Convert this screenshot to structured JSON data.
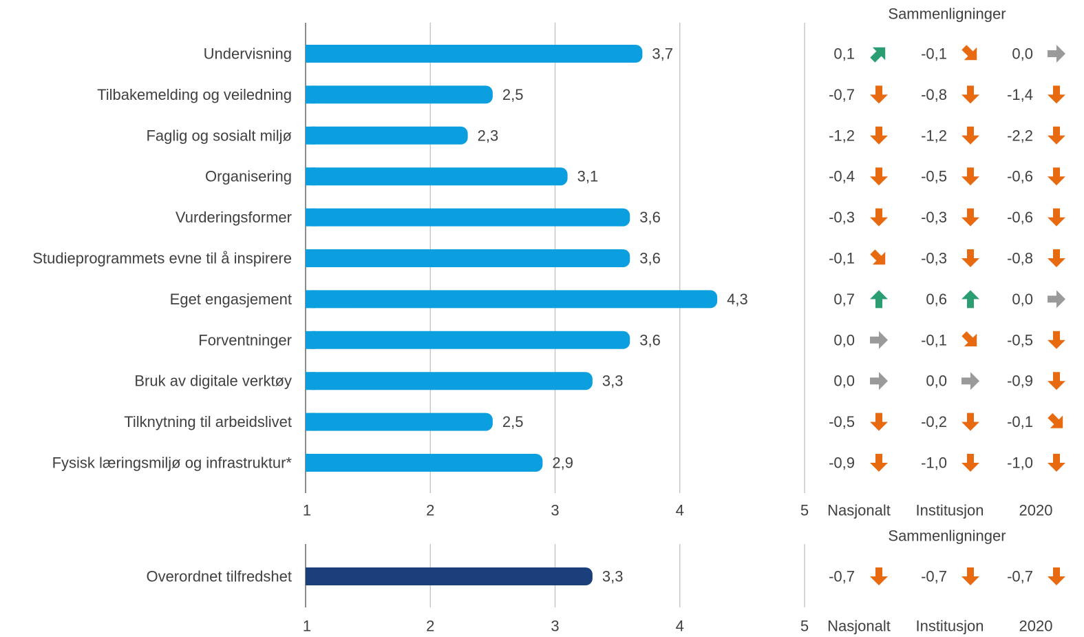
{
  "comparisons_title": "Sammenligninger",
  "comparison_headers": [
    "Nasjonalt",
    "Institusjon",
    "2020"
  ],
  "colors": {
    "bar_main": "#0b9fe0",
    "bar_overall": "#1b3f7a",
    "arrow_up": "#2a9d72",
    "arrow_down": "#e86a10",
    "arrow_neutral": "#9a9a9a",
    "grid": "#bfbfbf",
    "axis": "#8c8c8c",
    "text": "#404040"
  },
  "chart_data": [
    {
      "type": "bar",
      "orientation": "horizontal",
      "xlim": [
        1,
        5
      ],
      "ticks": [
        "1",
        "2",
        "3",
        "4",
        "5"
      ],
      "grid": true,
      "categories": [
        "Undervisning",
        "Tilbakemelding og veiledning",
        "Faglig og sosialt miljø",
        "Organisering",
        "Vurderingsformer",
        "Studieprogrammets evne til å inspirere",
        "Eget engasjement",
        "Forventninger",
        "Bruk av digitale verktøy",
        "Tilknytning til arbeidslivet",
        "Fysisk læringsmiljø og infrastruktur*"
      ],
      "values": [
        3.7,
        2.5,
        2.3,
        3.1,
        3.6,
        3.6,
        4.3,
        3.6,
        3.3,
        2.5,
        2.9
      ],
      "labels": [
        "3,7",
        "2,5",
        "2,3",
        "3,1",
        "3,6",
        "3,6",
        "4,3",
        "3,6",
        "3,3",
        "2,5",
        "2,9"
      ],
      "comparisons": [
        [
          {
            "v": "0,1",
            "d": "up-right"
          },
          {
            "v": "-0,1",
            "d": "down-right"
          },
          {
            "v": "0,0",
            "d": "right"
          }
        ],
        [
          {
            "v": "-0,7",
            "d": "down"
          },
          {
            "v": "-0,8",
            "d": "down"
          },
          {
            "v": "-1,4",
            "d": "down"
          }
        ],
        [
          {
            "v": "-1,2",
            "d": "down"
          },
          {
            "v": "-1,2",
            "d": "down"
          },
          {
            "v": "-2,2",
            "d": "down"
          }
        ],
        [
          {
            "v": "-0,4",
            "d": "down"
          },
          {
            "v": "-0,5",
            "d": "down"
          },
          {
            "v": "-0,6",
            "d": "down"
          }
        ],
        [
          {
            "v": "-0,3",
            "d": "down"
          },
          {
            "v": "-0,3",
            "d": "down"
          },
          {
            "v": "-0,6",
            "d": "down"
          }
        ],
        [
          {
            "v": "-0,1",
            "d": "down-right"
          },
          {
            "v": "-0,3",
            "d": "down"
          },
          {
            "v": "-0,8",
            "d": "down"
          }
        ],
        [
          {
            "v": "0,7",
            "d": "up"
          },
          {
            "v": "0,6",
            "d": "up"
          },
          {
            "v": "0,0",
            "d": "right"
          }
        ],
        [
          {
            "v": "0,0",
            "d": "right"
          },
          {
            "v": "-0,1",
            "d": "down-right"
          },
          {
            "v": "-0,5",
            "d": "down"
          }
        ],
        [
          {
            "v": "0,0",
            "d": "right"
          },
          {
            "v": "0,0",
            "d": "right"
          },
          {
            "v": "-0,9",
            "d": "down"
          }
        ],
        [
          {
            "v": "-0,5",
            "d": "down"
          },
          {
            "v": "-0,2",
            "d": "down"
          },
          {
            "v": "-0,1",
            "d": "down-right"
          }
        ],
        [
          {
            "v": "-0,9",
            "d": "down"
          },
          {
            "v": "-1,0",
            "d": "down"
          },
          {
            "v": "-1,0",
            "d": "down"
          }
        ]
      ]
    },
    {
      "type": "bar",
      "orientation": "horizontal",
      "xlim": [
        1,
        5
      ],
      "ticks": [
        "1",
        "2",
        "3",
        "4",
        "5"
      ],
      "grid": true,
      "categories": [
        "Overordnet tilfredshet"
      ],
      "values": [
        3.3
      ],
      "labels": [
        "3,3"
      ],
      "comparisons": [
        [
          {
            "v": "-0,7",
            "d": "down"
          },
          {
            "v": "-0,7",
            "d": "down"
          },
          {
            "v": "-0,7",
            "d": "down"
          }
        ]
      ]
    }
  ]
}
